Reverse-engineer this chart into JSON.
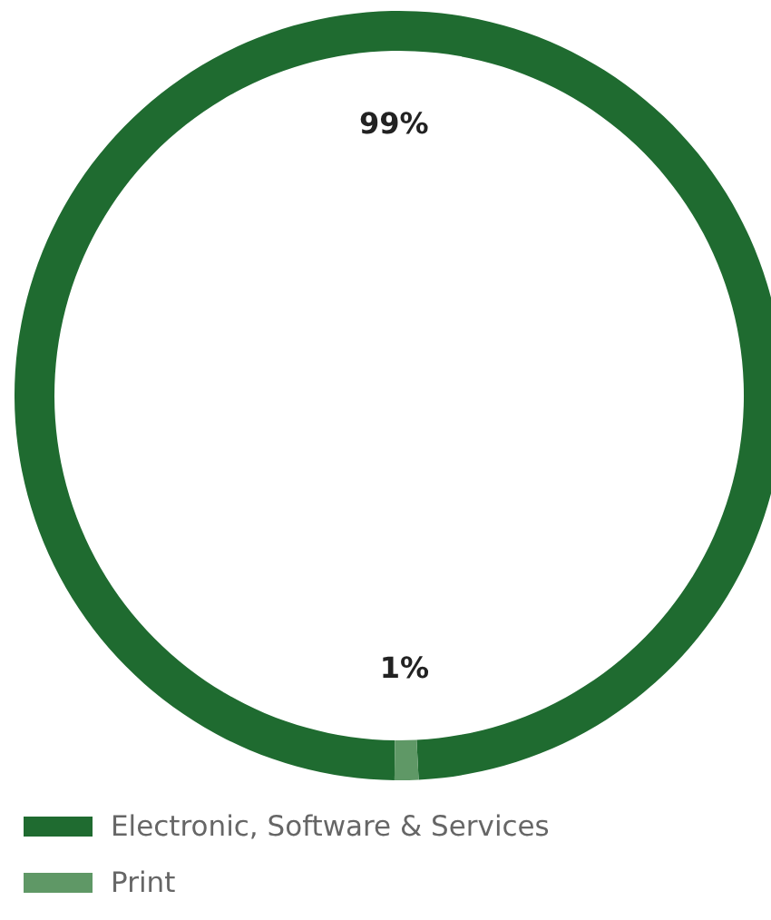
{
  "chart_data": {
    "type": "donut",
    "categories": [
      "Electronic, Software & Services",
      "Print"
    ],
    "values": [
      99,
      1
    ],
    "colors": [
      "#1f6b30",
      "#5f9866"
    ],
    "value_labels": [
      "99%",
      "1%"
    ],
    "legend": "bottom"
  }
}
